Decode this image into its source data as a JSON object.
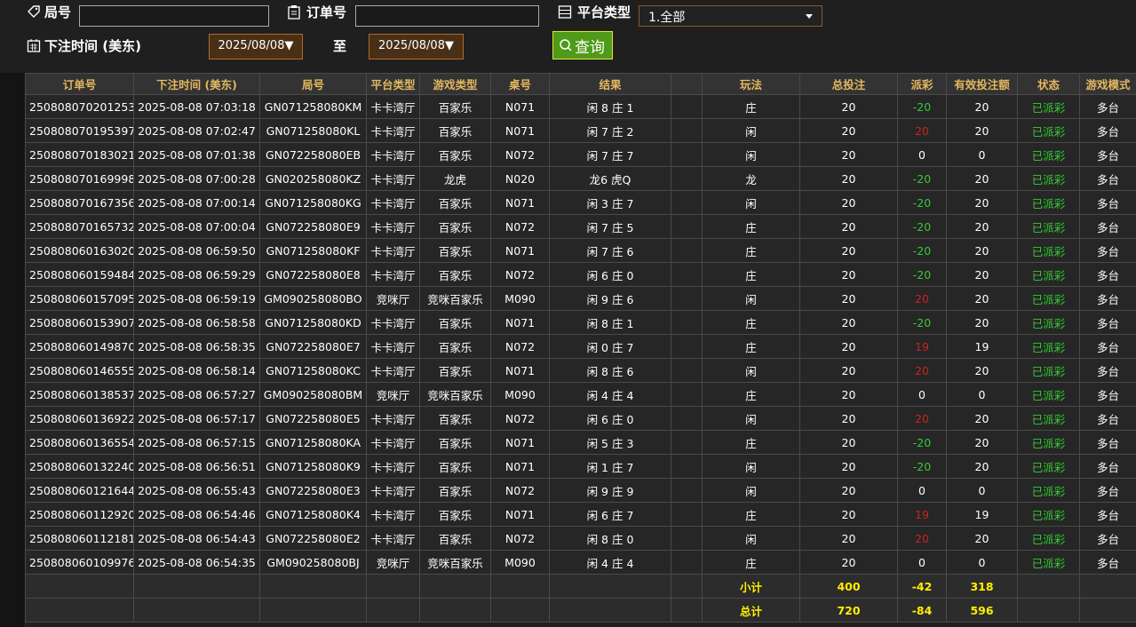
{
  "filters": {
    "round_label": "局号",
    "order_label": "订单号",
    "platform_label": "平台类型",
    "platform_value": "1.全部",
    "time_label": "下注时间 (美东)",
    "date_from": "2025/08/08▼",
    "to_label": "至",
    "date_to": "2025/08/08▼",
    "query_button": "查询"
  },
  "table": {
    "headers": [
      "订单号",
      "下注时间 (美东)",
      "局号",
      "平台类型",
      "游戏类型",
      "桌号",
      "结果",
      "玩法",
      "总投注",
      "派彩",
      "有效投注额",
      "状态",
      "游戏模式"
    ],
    "rows": [
      [
        "250808070201253",
        "2025-08-08 07:03:18",
        "GN071258080KM",
        "卡卡湾厅",
        "百家乐",
        "N071",
        "闲 8 庄 1",
        "庄",
        "20",
        "-20",
        "20",
        "已派彩",
        "多台"
      ],
      [
        "250808070195397",
        "2025-08-08 07:02:47",
        "GN071258080KL",
        "卡卡湾厅",
        "百家乐",
        "N071",
        "闲 7 庄 2",
        "闲",
        "20",
        "20",
        "20",
        "已派彩",
        "多台"
      ],
      [
        "250808070183021",
        "2025-08-08 07:01:38",
        "GN072258080EB",
        "卡卡湾厅",
        "百家乐",
        "N072",
        "闲 7 庄 7",
        "闲",
        "20",
        "0",
        "0",
        "已派彩",
        "多台"
      ],
      [
        "250808070169998",
        "2025-08-08 07:00:28",
        "GN020258080KZ",
        "卡卡湾厅",
        "龙虎",
        "N020",
        "龙6 虎Q",
        "龙",
        "20",
        "-20",
        "20",
        "已派彩",
        "多台"
      ],
      [
        "250808070167356",
        "2025-08-08 07:00:14",
        "GN071258080KG",
        "卡卡湾厅",
        "百家乐",
        "N071",
        "闲 3 庄 7",
        "闲",
        "20",
        "-20",
        "20",
        "已派彩",
        "多台"
      ],
      [
        "250808070165732",
        "2025-08-08 07:00:04",
        "GN072258080E9",
        "卡卡湾厅",
        "百家乐",
        "N072",
        "闲 7 庄 5",
        "庄",
        "20",
        "-20",
        "20",
        "已派彩",
        "多台"
      ],
      [
        "250808060163020",
        "2025-08-08 06:59:50",
        "GN071258080KF",
        "卡卡湾厅",
        "百家乐",
        "N071",
        "闲 7 庄 6",
        "庄",
        "20",
        "-20",
        "20",
        "已派彩",
        "多台"
      ],
      [
        "250808060159484",
        "2025-08-08 06:59:29",
        "GN072258080E8",
        "卡卡湾厅",
        "百家乐",
        "N072",
        "闲 6 庄 0",
        "庄",
        "20",
        "-20",
        "20",
        "已派彩",
        "多台"
      ],
      [
        "250808060157095",
        "2025-08-08 06:59:19",
        "GM090258080BO",
        "竞咪厅",
        "竞咪百家乐",
        "M090",
        "闲 9 庄 6",
        "闲",
        "20",
        "20",
        "20",
        "已派彩",
        "多台"
      ],
      [
        "250808060153907",
        "2025-08-08 06:58:58",
        "GN071258080KD",
        "卡卡湾厅",
        "百家乐",
        "N071",
        "闲 8 庄 1",
        "庄",
        "20",
        "-20",
        "20",
        "已派彩",
        "多台"
      ],
      [
        "250808060149870",
        "2025-08-08 06:58:35",
        "GN072258080E7",
        "卡卡湾厅",
        "百家乐",
        "N072",
        "闲 0 庄 7",
        "庄",
        "20",
        "19",
        "19",
        "已派彩",
        "多台"
      ],
      [
        "250808060146555",
        "2025-08-08 06:58:14",
        "GN071258080KC",
        "卡卡湾厅",
        "百家乐",
        "N071",
        "闲 8 庄 6",
        "闲",
        "20",
        "20",
        "20",
        "已派彩",
        "多台"
      ],
      [
        "250808060138537",
        "2025-08-08 06:57:27",
        "GM090258080BM",
        "竞咪厅",
        "竞咪百家乐",
        "M090",
        "闲 4 庄 4",
        "庄",
        "20",
        "0",
        "0",
        "已派彩",
        "多台"
      ],
      [
        "250808060136922",
        "2025-08-08 06:57:17",
        "GN072258080E5",
        "卡卡湾厅",
        "百家乐",
        "N072",
        "闲 6 庄 0",
        "闲",
        "20",
        "20",
        "20",
        "已派彩",
        "多台"
      ],
      [
        "250808060136554",
        "2025-08-08 06:57:15",
        "GN071258080KA",
        "卡卡湾厅",
        "百家乐",
        "N071",
        "闲 5 庄 3",
        "庄",
        "20",
        "-20",
        "20",
        "已派彩",
        "多台"
      ],
      [
        "250808060132240",
        "2025-08-08 06:56:51",
        "GN071258080K9",
        "卡卡湾厅",
        "百家乐",
        "N071",
        "闲 1 庄 7",
        "闲",
        "20",
        "-20",
        "20",
        "已派彩",
        "多台"
      ],
      [
        "250808060121644",
        "2025-08-08 06:55:43",
        "GN072258080E3",
        "卡卡湾厅",
        "百家乐",
        "N072",
        "闲 9 庄 9",
        "闲",
        "20",
        "0",
        "0",
        "已派彩",
        "多台"
      ],
      [
        "250808060112920",
        "2025-08-08 06:54:46",
        "GN071258080K4",
        "卡卡湾厅",
        "百家乐",
        "N071",
        "闲 6 庄 7",
        "庄",
        "20",
        "19",
        "19",
        "已派彩",
        "多台"
      ],
      [
        "250808060112181",
        "2025-08-08 06:54:43",
        "GN072258080E2",
        "卡卡湾厅",
        "百家乐",
        "N072",
        "闲 8 庄 0",
        "闲",
        "20",
        "20",
        "20",
        "已派彩",
        "多台"
      ],
      [
        "250808060109976",
        "2025-08-08 06:54:35",
        "GM090258080BJ",
        "竞咪厅",
        "竞咪百家乐",
        "M090",
        "闲 4 庄 4",
        "庄",
        "20",
        "0",
        "0",
        "已派彩",
        "多台"
      ]
    ],
    "summary": [
      {
        "label": "小计",
        "total_bet": "400",
        "payout": "-42",
        "valid_bet": "318"
      },
      {
        "label": "总计",
        "total_bet": "720",
        "payout": "-84",
        "valid_bet": "596"
      }
    ]
  }
}
